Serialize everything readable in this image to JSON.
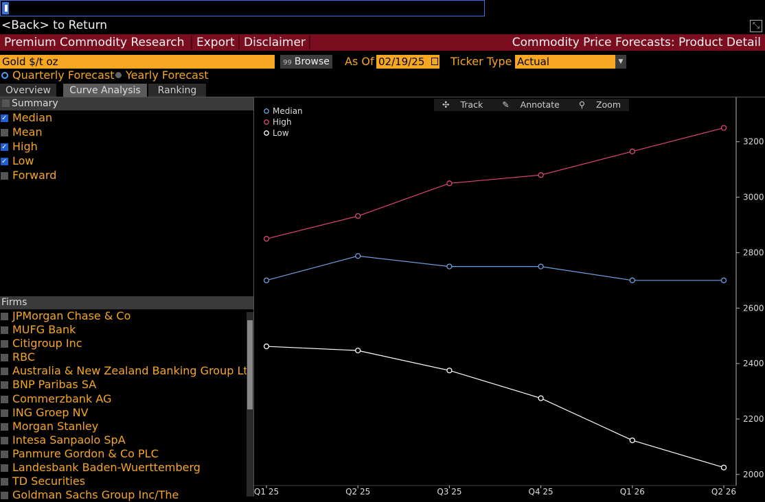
{
  "nav": {
    "back_key": "<Back>",
    "back_text": " to Return"
  },
  "menu": {
    "research": "Premium Commodity Research",
    "export": "Export",
    "disclaimer": "Disclaimer",
    "page_title": "Commodity Price Forecasts: Product Detail"
  },
  "controls": {
    "ticker": "Gold $/t oz",
    "browse_icon": "99",
    "browse": "Browse",
    "as_of_label": "As Of",
    "as_of_value": "02/19/25",
    "ticker_type_label": "Ticker Type",
    "ticker_type_value": "Actual",
    "forecast_options": [
      {
        "label": "Quarterly Forecast",
        "selected": true
      },
      {
        "label": "Yearly Forecast",
        "selected": false
      }
    ]
  },
  "tabs": [
    {
      "label": "Overview",
      "active": false
    },
    {
      "label": "Curve Analysis",
      "active": true
    },
    {
      "label": "Ranking",
      "active": false
    }
  ],
  "summary": {
    "header": "Summary",
    "items": [
      {
        "label": "Median",
        "checked": true
      },
      {
        "label": "Mean",
        "checked": false
      },
      {
        "label": "High",
        "checked": true
      },
      {
        "label": "Low",
        "checked": true
      },
      {
        "label": "Forward",
        "checked": false
      }
    ]
  },
  "firms": {
    "header": "Firms",
    "items": [
      "JPMorgan Chase & Co",
      "MUFG Bank",
      "Citigroup Inc",
      "RBC",
      "Australia & New Zealand Banking Group Ltd",
      "BNP Paribas SA",
      "Commerzbank AG",
      "ING Groep NV",
      "Morgan Stanley",
      "Intesa Sanpaolo SpA",
      "Panmure Gordon & Co PLC",
      "Landesbank Baden-Wuerttemberg",
      "TD Securities",
      "Goldman Sachs Group Inc/The"
    ]
  },
  "chart_toolbar": {
    "track": "Track",
    "annotate": "Annotate",
    "zoom": "Zoom"
  },
  "colors": {
    "median": "#6f9fe0",
    "high": "#e0457a",
    "low": "#ffffff",
    "accent": "#f5a623",
    "menu_bar": "#7b0e1e"
  },
  "chart_data": {
    "type": "line",
    "categories": [
      "Q1 25",
      "Q2 25",
      "Q3 25",
      "Q4 25",
      "Q1 26",
      "Q2 26"
    ],
    "series": [
      {
        "name": "Median",
        "values": [
          2700,
          2788,
          2750,
          2750,
          2700,
          2700
        ]
      },
      {
        "name": "High",
        "values": [
          2850,
          2932,
          3050,
          3080,
          3165,
          3250
        ]
      },
      {
        "name": "Low",
        "values": [
          2462,
          2447,
          2375,
          2275,
          2123,
          2025
        ]
      }
    ],
    "yticks": [
      2000,
      2200,
      2400,
      2600,
      2800,
      3000,
      3200
    ],
    "ylim": [
      1960,
      3360
    ],
    "legend": "top-left",
    "grid": false
  }
}
